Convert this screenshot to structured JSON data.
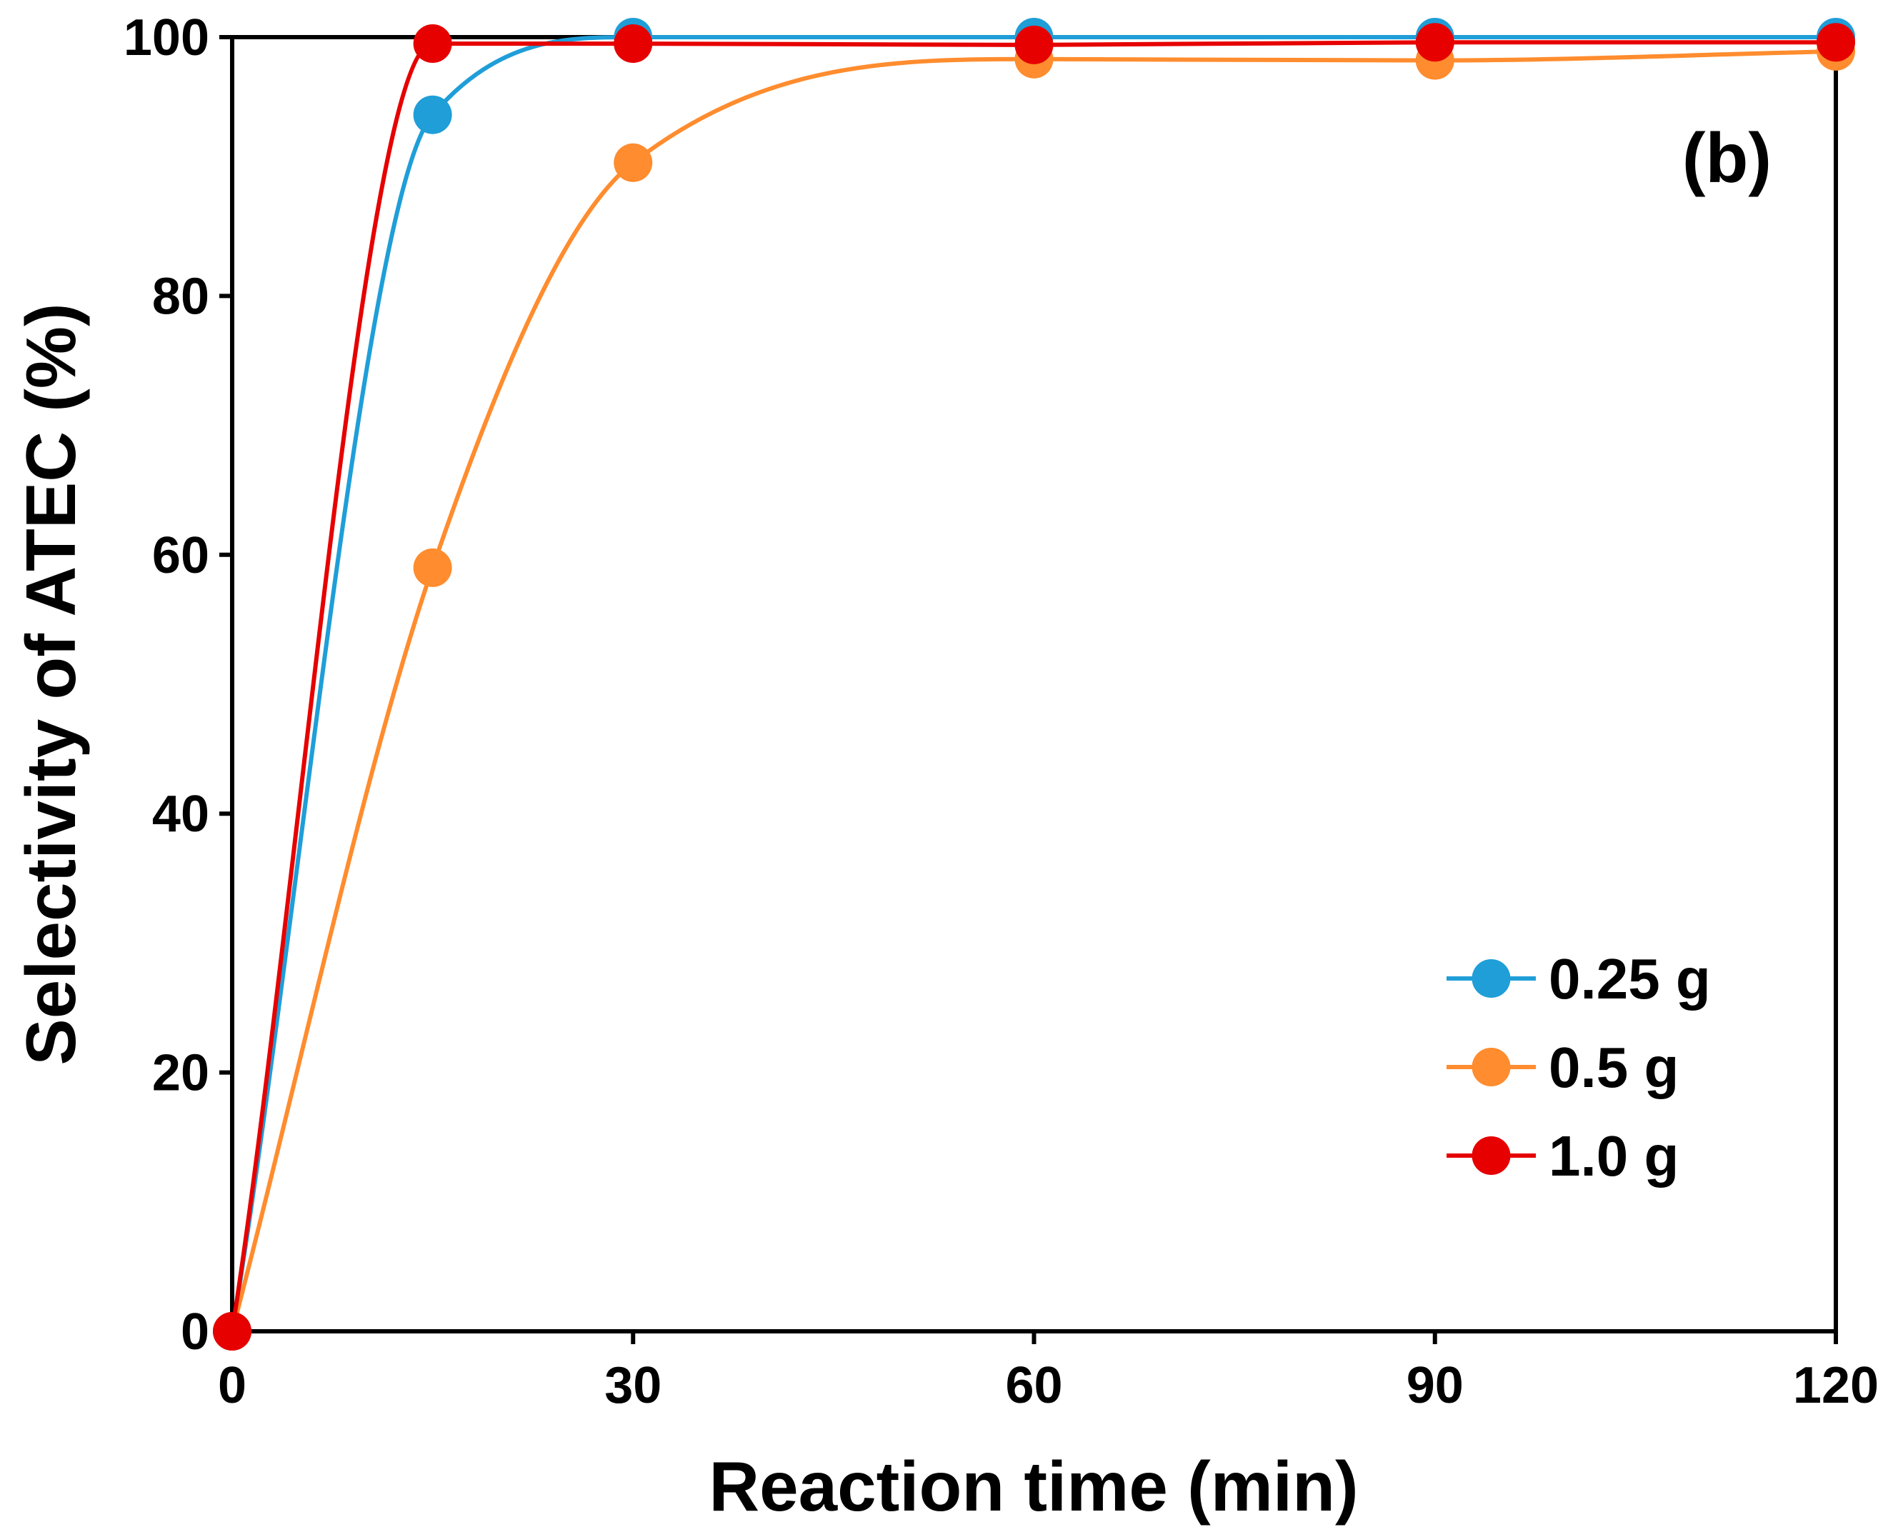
{
  "chart_data": {
    "type": "line",
    "panel_label": "(b)",
    "xlabel": "Reaction time (min)",
    "ylabel": "Selectivity of ATEC (%)",
    "xlim": [
      0,
      120
    ],
    "ylim": [
      0,
      100
    ],
    "xticks": [
      0,
      30,
      60,
      90,
      120
    ],
    "yticks": [
      0,
      20,
      40,
      60,
      80,
      100
    ],
    "grid": false,
    "legend_position": "bottom-right",
    "x": [
      0,
      15,
      30,
      60,
      90,
      120
    ],
    "series": [
      {
        "name": "0.25 g",
        "color": "#1f9ed8",
        "values": [
          0,
          94,
          100,
          100,
          100,
          100
        ]
      },
      {
        "name": "0.5 g",
        "color": "#ff8c2e",
        "values": [
          0,
          59,
          90.3,
          98.3,
          98.2,
          98.9
        ]
      },
      {
        "name": "1.0 g",
        "color": "#e60000",
        "values": [
          0,
          99.5,
          99.5,
          99.4,
          99.6,
          99.6
        ]
      }
    ]
  }
}
